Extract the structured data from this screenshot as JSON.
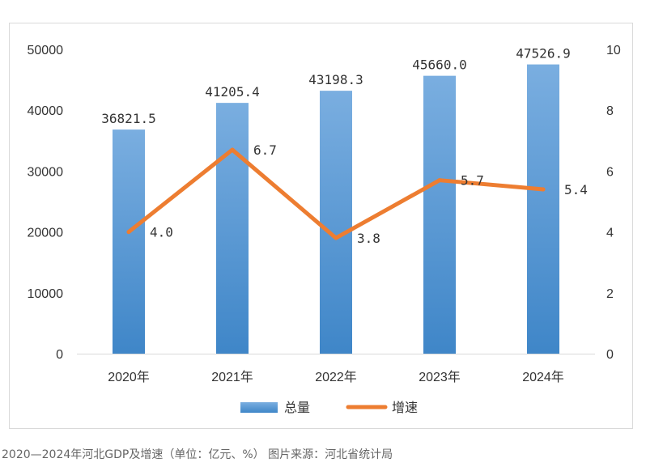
{
  "chart_data": {
    "type": "bar",
    "categories": [
      "2020年",
      "2021年",
      "2022年",
      "2023年",
      "2024年"
    ],
    "series": [
      {
        "name": "总量",
        "type": "bar",
        "axis": "left",
        "color": "#5b9bd5",
        "values": [
          36821.5,
          41205.4,
          43198.3,
          45660.0,
          47526.9
        ],
        "labels": [
          "36821.5",
          "41205.4",
          "43198.3",
          "45660.0",
          "47526.9"
        ]
      },
      {
        "name": "增速",
        "type": "line",
        "axis": "right",
        "color": "#ed7d31",
        "values": [
          4.0,
          6.7,
          3.8,
          5.7,
          5.4
        ],
        "labels": [
          "4.0",
          "6.7",
          "3.8",
          "5.7",
          "5.4"
        ]
      }
    ],
    "y_left": {
      "range": [
        0,
        50000
      ],
      "ticks": [
        "0",
        "10000",
        "20000",
        "30000",
        "40000",
        "50000"
      ]
    },
    "y_right": {
      "range": [
        0,
        10
      ],
      "ticks": [
        "0",
        "2",
        "4",
        "6",
        "8",
        "10"
      ]
    },
    "grid": false,
    "legend_position": "bottom"
  },
  "caption": "2020—2024年河北GDP及增速（单位：亿元、%） 图片来源：河北省统计局"
}
